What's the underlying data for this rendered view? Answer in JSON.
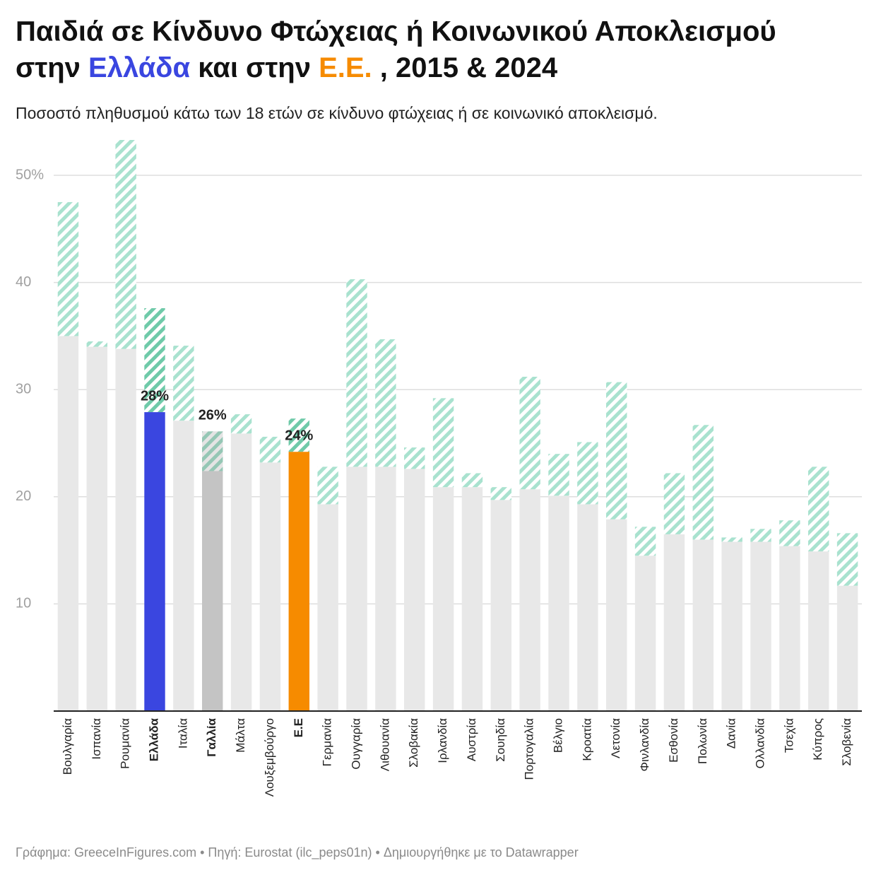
{
  "chart_data": {
    "type": "bar",
    "title": {
      "line1": "Παιδιά σε Κίνδυνο Φτώχειας ή Κοινωνικού Αποκλεισμού",
      "line2": [
        {
          "text": "στην "
        },
        {
          "text": "Ελλάδα",
          "color": "#3a46e0"
        },
        {
          "text": " και στην "
        },
        {
          "text": "Ε.Ε.",
          "color": "#f68b00"
        },
        {
          "text": " , 2015 & 2024"
        }
      ]
    },
    "subtitle": "Ποσοστό πληθυσμού κάτω των 18 ετών σε κίνδυνο φτώχειας ή σε κοινωνικό αποκλεισμό.",
    "source": "Γράφημα: GreeceInFigures.com • Πηγή: Eurostat (ilc_peps01n) • Δημιουργήθηκε με το Datawrapper",
    "categories": [
      "Βουλγαρία",
      "Ισπανία",
      "Ρουμανία",
      "Ελλάδα",
      "Ιταλία",
      "Γαλλία",
      "Μάλτα",
      "Λουξεμβούργο",
      "Ε.Ε",
      "Γερμανία",
      "Ουγγαρία",
      "Λιθουανία",
      "Σλοβακία",
      "Ιρλανδία",
      "Αυστρία",
      "Σουηδία",
      "Πορτογαλία",
      "Βέλγιο",
      "Κροατία",
      "Λετονία",
      "Φινλανδία",
      "Εσθονία",
      "Πολωνία",
      "Δανία",
      "Ολλανδία",
      "Τσεχία",
      "Κύπρος",
      "Σλοβενία"
    ],
    "bar_colors": [
      "#e8e8e8",
      "#e8e8e8",
      "#e8e8e8",
      "#3a46e0",
      "#e8e8e8",
      "#c4c4c4",
      "#e8e8e8",
      "#e8e8e8",
      "#f68b00",
      "#e8e8e8",
      "#e8e8e8",
      "#e8e8e8",
      "#e8e8e8",
      "#e8e8e8",
      "#e8e8e8",
      "#e8e8e8",
      "#e8e8e8",
      "#e8e8e8",
      "#e8e8e8",
      "#e8e8e8",
      "#e8e8e8",
      "#e8e8e8",
      "#e8e8e8",
      "#e8e8e8",
      "#e8e8e8",
      "#e8e8e8",
      "#e8e8e8",
      "#e8e8e8"
    ],
    "default_color": "#e8e8e8",
    "hatch_color": "#a9e2cf",
    "hatch_highlight_color": "#6fcaa9",
    "series": [
      {
        "values": [
          35.0,
          34.0,
          33.8,
          27.9,
          27.1,
          26.1,
          25.9,
          23.2,
          24.2,
          19.3,
          22.8,
          22.8,
          22.6,
          20.9,
          20.9,
          19.7,
          20.7,
          20.1,
          19.3,
          17.9,
          14.5,
          16.5,
          16.0,
          15.8,
          15.8,
          15.4,
          14.9,
          11.7
        ],
        "value_labels": [
          null,
          null,
          null,
          "28%",
          null,
          "26%",
          null,
          null,
          "24%",
          null,
          null,
          null,
          null,
          null,
          null,
          null,
          null,
          null,
          null,
          null,
          null,
          null,
          null,
          null,
          null,
          null,
          null,
          null
        ]
      },
      {
        "values": [
          47.5,
          34.5,
          53.3,
          37.6,
          34.1,
          22.4,
          27.7,
          25.6,
          27.3,
          22.8,
          40.3,
          34.7,
          24.6,
          29.2,
          22.2,
          20.9,
          31.2,
          24.0,
          25.1,
          30.7,
          17.2,
          22.2,
          26.7,
          16.2,
          17.0,
          17.8,
          22.8,
          16.6
        ]
      }
    ],
    "ylim": [
      0,
      53.3
    ],
    "yticks": [
      10,
      20,
      30,
      40,
      {
        "value": 50,
        "label": "50%"
      }
    ],
    "grid": true
  }
}
